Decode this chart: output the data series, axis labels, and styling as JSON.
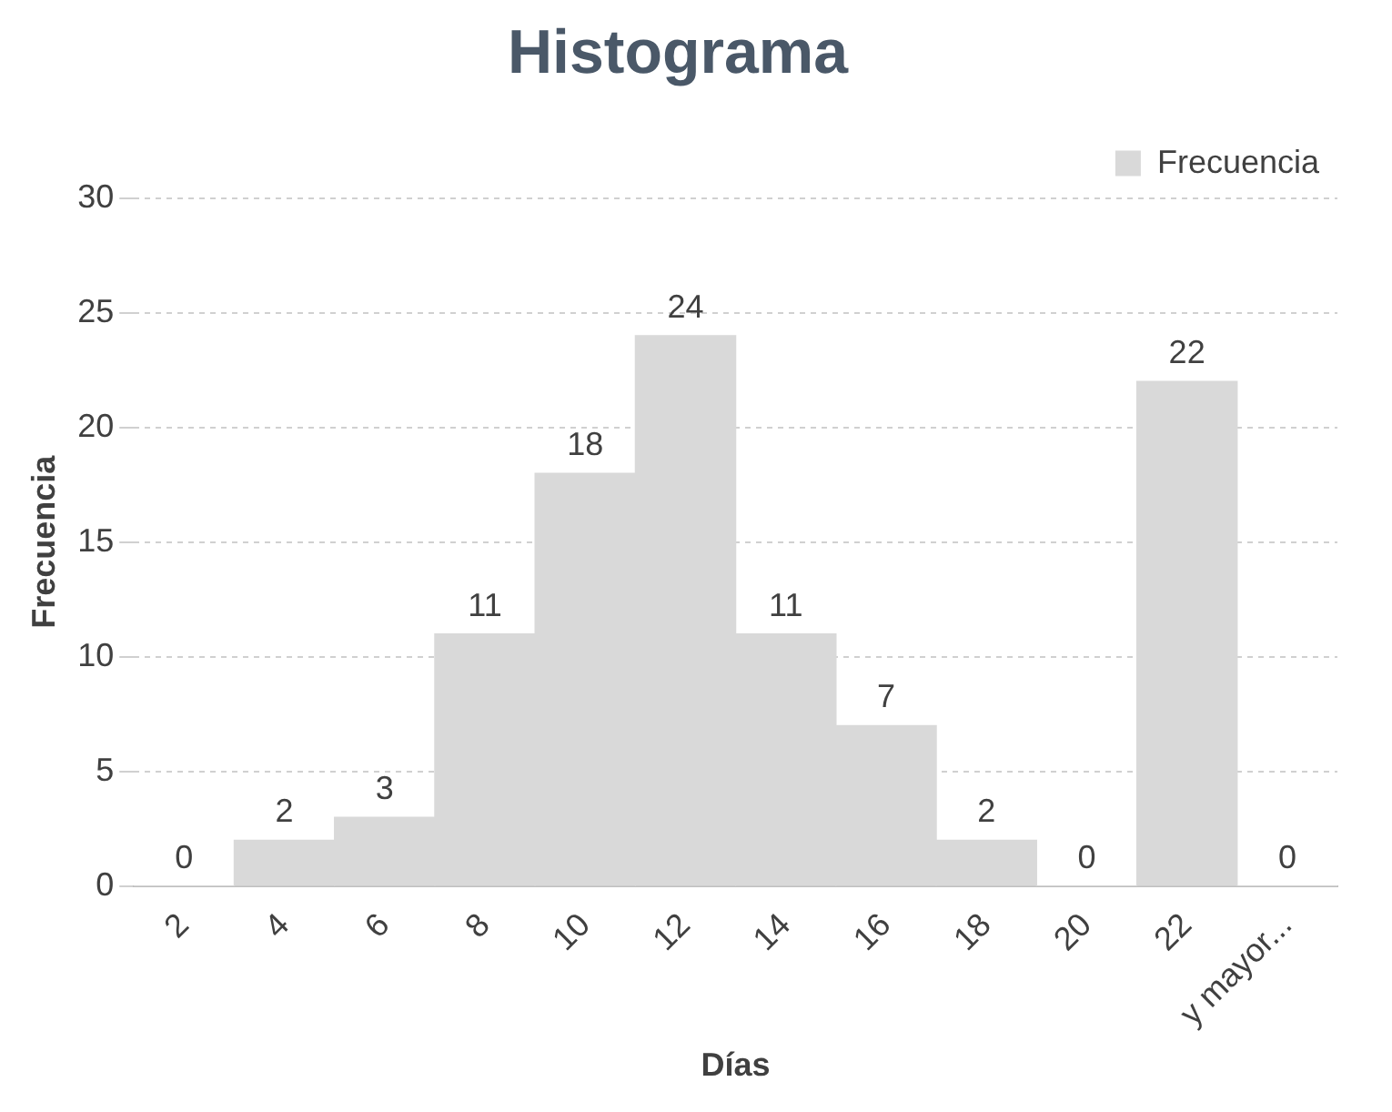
{
  "chart_data": {
    "type": "bar",
    "title": "Histograma",
    "xlabel": "Días",
    "ylabel": "Frecuencia",
    "categories": [
      "2",
      "4",
      "6",
      "8",
      "10",
      "12",
      "14",
      "16",
      "18",
      "20",
      "22",
      "y mayor..."
    ],
    "series": [
      {
        "name": "Frecuencia",
        "color": "#d9d9d9",
        "values": [
          0,
          2,
          3,
          11,
          18,
          24,
          11,
          7,
          2,
          0,
          22,
          0
        ]
      }
    ],
    "ylim": [
      0,
      30
    ],
    "yticks": [
      0,
      5,
      10,
      15,
      20,
      25,
      30
    ],
    "grid": "y",
    "legend": "top right",
    "data_labels": true
  }
}
